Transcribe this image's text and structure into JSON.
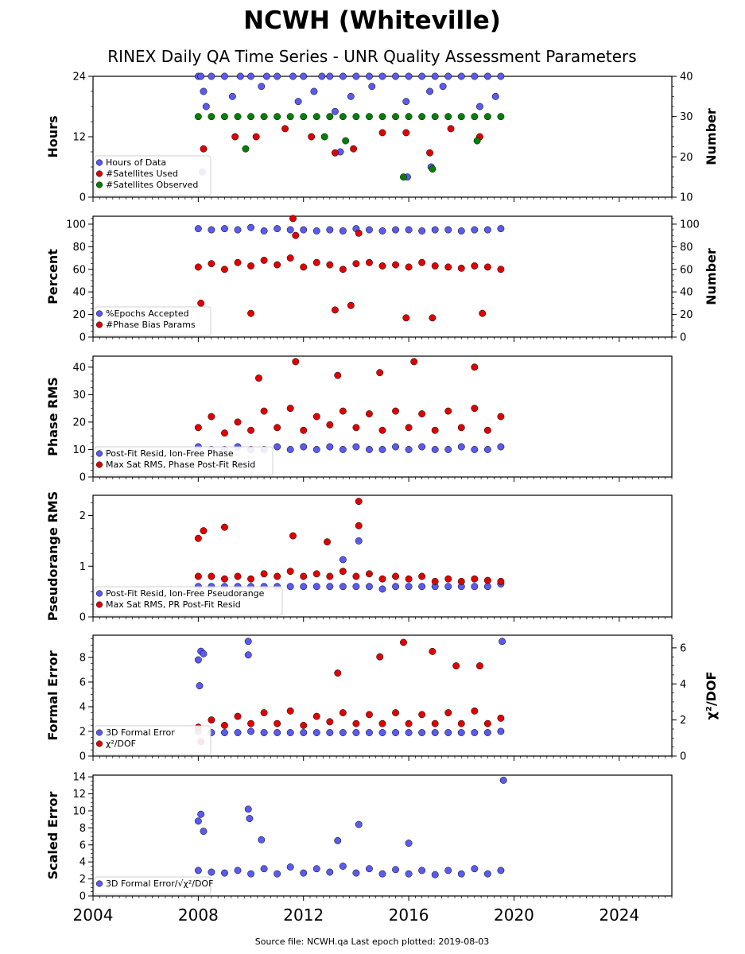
{
  "title": "NCWH (Whiteville)",
  "subtitle": "RINEX Daily QA Time Series - UNR Quality Assessment Parameters",
  "footer": "Source file: NCWH.qa Last epoch plotted: 2019-08-03",
  "colors": {
    "blue": "#5a5af0",
    "red": "#e00000",
    "green": "#008000",
    "edge": "#000000"
  },
  "chart_data": [
    {
      "type": "scatter",
      "id": "hours",
      "ylabel": "Hours",
      "ylabel_right": "Number",
      "x_range": [
        2004,
        2026
      ],
      "ylim": [
        0,
        24
      ],
      "yticks": [
        0,
        12,
        24
      ],
      "ylim_right": [
        10,
        40
      ],
      "yticks_right": [
        10,
        20,
        30,
        40
      ],
      "legend_position": "lower-left",
      "series": [
        {
          "name": "Hours of Data",
          "color": "blue",
          "axis": "left",
          "x": [
            2008.0,
            2008.1,
            2008.5,
            2009.0,
            2009.6,
            2010.0,
            2010.6,
            2011.0,
            2011.6,
            2012.0,
            2012.7,
            2013.0,
            2013.5,
            2014.0,
            2014.5,
            2015.0,
            2015.5,
            2016.0,
            2016.5,
            2017.0,
            2017.5,
            2018.0,
            2018.5,
            2019.0,
            2019.5,
            2008.2,
            2008.3,
            2009.3,
            2010.4,
            2011.8,
            2012.4,
            2013.2,
            2013.8,
            2014.6,
            2015.9,
            2016.8,
            2017.3,
            2018.7,
            2019.3,
            2008.15,
            2013.4,
            2015.95,
            2016.85
          ],
          "y": [
            24,
            24,
            24,
            24,
            24,
            24,
            24,
            24,
            24,
            24,
            24,
            24,
            24,
            24,
            24,
            24,
            24,
            24,
            24,
            24,
            24,
            24,
            24,
            24,
            24,
            21,
            18,
            20,
            22,
            19,
            21,
            17,
            20,
            22,
            19,
            21,
            22,
            18,
            20,
            5,
            9,
            4,
            6
          ]
        },
        {
          "name": "#Satellites Used",
          "color": "red",
          "axis": "right",
          "x": [
            2008.2,
            2009.4,
            2010.2,
            2011.3,
            2012.3,
            2013.2,
            2013.9,
            2015.0,
            2015.9,
            2016.8,
            2017.6,
            2018.7
          ],
          "y": [
            22,
            25,
            25,
            27,
            25,
            21,
            22,
            26,
            26,
            21,
            27,
            25
          ]
        },
        {
          "name": "#Satellites Observed",
          "color": "green",
          "axis": "right",
          "x": [
            2008.0,
            2008.5,
            2009.0,
            2009.5,
            2010.0,
            2010.5,
            2011.0,
            2011.5,
            2012.0,
            2012.5,
            2013.0,
            2013.5,
            2014.0,
            2014.5,
            2015.0,
            2015.5,
            2016.0,
            2016.5,
            2017.0,
            2017.5,
            2018.0,
            2018.5,
            2019.0,
            2019.5,
            2009.8,
            2012.8,
            2013.6,
            2015.8,
            2016.9,
            2018.6
          ],
          "y": [
            30,
            30,
            30,
            30,
            30,
            30,
            30,
            30,
            30,
            30,
            30,
            30,
            30,
            30,
            30,
            30,
            30,
            30,
            30,
            30,
            30,
            30,
            30,
            30,
            22,
            25,
            24,
            15,
            17,
            24
          ]
        }
      ]
    },
    {
      "type": "scatter",
      "id": "percent",
      "ylabel": "Percent",
      "ylabel_right": "Number",
      "x_range": [
        2004,
        2026
      ],
      "ylim": [
        0,
        107
      ],
      "yticks": [
        0,
        20,
        40,
        60,
        80,
        100
      ],
      "ylim_right": [
        0,
        107
      ],
      "yticks_right": [
        0,
        20,
        40,
        60,
        80,
        100
      ],
      "legend_position": "lower-left",
      "series": [
        {
          "name": "%Epochs Accepted",
          "color": "blue",
          "axis": "left",
          "x": [
            2008.0,
            2008.5,
            2009.0,
            2009.5,
            2010.0,
            2010.5,
            2011.0,
            2011.5,
            2012.0,
            2012.5,
            2013.0,
            2013.5,
            2014.0,
            2014.5,
            2015.0,
            2015.5,
            2016.0,
            2016.5,
            2017.0,
            2017.5,
            2018.0,
            2018.5,
            2019.0,
            2019.5
          ],
          "y": [
            96,
            95,
            96,
            95,
            97,
            94,
            96,
            95,
            95,
            94,
            95,
            94,
            96,
            95,
            94,
            95,
            95,
            94,
            95,
            95,
            94,
            95,
            95,
            96
          ]
        },
        {
          "name": "#Phase Bias Params",
          "color": "red",
          "axis": "right",
          "x": [
            2008.0,
            2008.5,
            2009.0,
            2009.5,
            2010.0,
            2010.5,
            2011.0,
            2011.5,
            2012.0,
            2012.5,
            2013.0,
            2013.5,
            2014.0,
            2014.5,
            2015.0,
            2015.5,
            2016.0,
            2016.5,
            2017.0,
            2017.5,
            2018.0,
            2018.5,
            2019.0,
            2019.5,
            2008.1,
            2010.0,
            2011.6,
            2013.2,
            2013.8,
            2015.9,
            2016.9,
            2018.8,
            2011.7,
            2014.1
          ],
          "y": [
            62,
            65,
            60,
            66,
            63,
            68,
            64,
            70,
            62,
            66,
            64,
            60,
            65,
            66,
            63,
            64,
            62,
            66,
            63,
            62,
            61,
            63,
            62,
            60,
            30,
            21,
            105,
            24,
            28,
            17,
            17,
            21,
            90,
            92
          ]
        }
      ]
    },
    {
      "type": "scatter",
      "id": "phase",
      "ylabel": "Phase RMS",
      "x_range": [
        2004,
        2026
      ],
      "ylim": [
        0,
        44
      ],
      "yticks": [
        0,
        10,
        20,
        30,
        40
      ],
      "legend_position": "lower-left",
      "series": [
        {
          "name": "Post-Fit Resid, Ion-Free Phase",
          "color": "blue",
          "x": [
            2008.0,
            2008.5,
            2009.0,
            2009.5,
            2010.0,
            2010.5,
            2011.0,
            2011.5,
            2012.0,
            2012.5,
            2013.0,
            2013.5,
            2014.0,
            2014.5,
            2015.0,
            2015.5,
            2016.0,
            2016.5,
            2017.0,
            2017.5,
            2018.0,
            2018.5,
            2019.0,
            2019.5
          ],
          "y": [
            11,
            10,
            10,
            11,
            10,
            10,
            11,
            10,
            11,
            10,
            11,
            10,
            11,
            10,
            10,
            11,
            10,
            11,
            10,
            10,
            11,
            10,
            10,
            11
          ]
        },
        {
          "name": "Max Sat RMS, Phase Post-Fit Resid",
          "color": "red",
          "x": [
            2008.0,
            2008.5,
            2009.0,
            2009.5,
            2010.0,
            2010.5,
            2011.0,
            2011.5,
            2012.0,
            2012.5,
            2013.0,
            2013.5,
            2014.0,
            2014.5,
            2015.0,
            2015.5,
            2016.0,
            2016.5,
            2017.0,
            2017.5,
            2018.0,
            2018.5,
            2019.0,
            2019.5,
            2011.7,
            2016.2,
            2018.5,
            2014.9,
            2013.3,
            2010.3
          ],
          "y": [
            18,
            22,
            16,
            20,
            17,
            24,
            18,
            25,
            17,
            22,
            19,
            24,
            18,
            23,
            17,
            24,
            18,
            23,
            17,
            24,
            18,
            25,
            17,
            22,
            42,
            42,
            40,
            38,
            37,
            36
          ]
        }
      ]
    },
    {
      "type": "scatter",
      "id": "pseudorange",
      "ylabel": "Pseudorange RMS",
      "x_range": [
        2004,
        2026
      ],
      "ylim": [
        0,
        2.4
      ],
      "yticks": [
        0,
        1,
        2
      ],
      "legend_position": "lower-left",
      "series": [
        {
          "name": "Post-Fit Resid, Ion-Free Pseudorange",
          "color": "blue",
          "x": [
            2008.0,
            2008.5,
            2009.0,
            2009.5,
            2010.0,
            2010.5,
            2011.0,
            2011.5,
            2012.0,
            2012.5,
            2013.0,
            2013.5,
            2014.0,
            2014.5,
            2015.0,
            2015.5,
            2016.0,
            2016.5,
            2017.0,
            2017.5,
            2018.0,
            2018.5,
            2019.0,
            2019.5,
            2013.5,
            2014.1
          ],
          "y": [
            0.6,
            0.6,
            0.6,
            0.6,
            0.6,
            0.6,
            0.6,
            0.6,
            0.6,
            0.6,
            0.6,
            0.6,
            0.6,
            0.6,
            0.55,
            0.6,
            0.6,
            0.6,
            0.6,
            0.6,
            0.6,
            0.6,
            0.6,
            0.65,
            1.13,
            1.5
          ]
        },
        {
          "name": "Max Sat RMS, PR Post-Fit Resid",
          "color": "red",
          "x": [
            2008.0,
            2008.5,
            2009.0,
            2009.5,
            2010.0,
            2010.5,
            2011.0,
            2011.5,
            2012.0,
            2012.5,
            2013.0,
            2013.5,
            2014.0,
            2014.5,
            2015.0,
            2015.5,
            2016.0,
            2016.5,
            2017.0,
            2017.5,
            2018.0,
            2018.5,
            2019.0,
            2019.5,
            2014.1,
            2014.1,
            2008.2,
            2008.0,
            2009.0,
            2011.6,
            2012.9
          ],
          "y": [
            0.8,
            0.8,
            0.75,
            0.8,
            0.75,
            0.85,
            0.8,
            0.9,
            0.8,
            0.85,
            0.8,
            0.9,
            0.8,
            0.85,
            0.75,
            0.8,
            0.75,
            0.8,
            0.7,
            0.75,
            0.7,
            0.75,
            0.72,
            0.7,
            2.28,
            1.8,
            1.7,
            1.55,
            1.77,
            1.6,
            1.48
          ]
        }
      ]
    },
    {
      "type": "scatter",
      "id": "formal",
      "ylabel": "Formal Error",
      "ylabel_right": "χ²/DOF",
      "x_range": [
        2004,
        2026
      ],
      "ylim": [
        0,
        9.8
      ],
      "yticks": [
        0,
        2,
        4,
        6,
        8
      ],
      "ylim_right": [
        0,
        6.7
      ],
      "yticks_right": [
        0,
        2,
        4,
        6
      ],
      "legend_position": "lower-left",
      "series": [
        {
          "name": "3D Formal Error",
          "color": "blue",
          "axis": "left",
          "x": [
            2008.0,
            2008.5,
            2009.0,
            2009.5,
            2010.0,
            2010.5,
            2011.0,
            2011.5,
            2012.0,
            2012.5,
            2013.0,
            2013.5,
            2014.0,
            2014.5,
            2015.0,
            2015.5,
            2016.0,
            2016.5,
            2017.0,
            2017.5,
            2018.0,
            2018.5,
            2019.0,
            2019.5,
            2008.0,
            2008.1,
            2008.2,
            2009.9,
            2009.9,
            2019.55,
            2008.05
          ],
          "y": [
            2.0,
            1.9,
            1.9,
            1.9,
            2.0,
            1.9,
            1.9,
            1.9,
            1.9,
            1.9,
            1.9,
            1.9,
            1.9,
            1.9,
            1.9,
            1.9,
            1.9,
            1.9,
            1.9,
            1.9,
            1.9,
            1.9,
            1.9,
            2.0,
            7.8,
            8.5,
            8.3,
            9.3,
            8.2,
            9.3,
            5.7
          ]
        },
        {
          "name": "χ²/DOF",
          "color": "red",
          "axis": "right",
          "x": [
            2008.0,
            2008.5,
            2009.0,
            2009.5,
            2010.0,
            2010.5,
            2011.0,
            2011.5,
            2012.0,
            2012.5,
            2013.0,
            2013.5,
            2014.0,
            2014.5,
            2015.0,
            2015.5,
            2016.0,
            2016.5,
            2017.0,
            2017.5,
            2018.0,
            2018.5,
            2019.0,
            2019.5,
            2015.8,
            2016.9,
            2017.8,
            2018.7,
            2014.9,
            2013.3,
            2008.1
          ],
          "y": [
            1.6,
            2.0,
            1.7,
            2.2,
            1.8,
            2.4,
            1.8,
            2.5,
            1.7,
            2.2,
            1.9,
            2.4,
            1.8,
            2.3,
            1.8,
            2.4,
            1.8,
            2.3,
            1.8,
            2.4,
            1.8,
            2.5,
            1.8,
            2.1,
            6.3,
            5.8,
            5.0,
            5.0,
            5.5,
            4.6,
            0.8
          ]
        }
      ]
    },
    {
      "type": "scatter",
      "id": "scaled",
      "ylabel": "Scaled Error",
      "x_range": [
        2004,
        2026
      ],
      "ylim": [
        0,
        14.2
      ],
      "yticks": [
        0,
        2,
        4,
        6,
        8,
        10,
        12,
        14
      ],
      "xticks": [
        2004,
        2008,
        2012,
        2016,
        2020,
        2024
      ],
      "legend_position": "lower-left",
      "series": [
        {
          "name": "3D Formal Error/√χ²/DOF",
          "color": "blue",
          "x": [
            2008.0,
            2008.5,
            2009.0,
            2009.5,
            2010.0,
            2010.5,
            2011.0,
            2011.5,
            2012.0,
            2012.5,
            2013.0,
            2013.5,
            2014.0,
            2014.5,
            2015.0,
            2015.5,
            2016.0,
            2016.5,
            2017.0,
            2017.5,
            2018.0,
            2018.5,
            2019.0,
            2019.5,
            2008.0,
            2008.1,
            2008.2,
            2009.9,
            2009.95,
            2014.1,
            2019.6,
            2010.4,
            2016.0,
            2013.3
          ],
          "y": [
            3.0,
            2.8,
            2.7,
            3.0,
            2.6,
            3.2,
            2.6,
            3.4,
            2.7,
            3.2,
            2.8,
            3.5,
            2.7,
            3.2,
            2.6,
            3.1,
            2.6,
            3.0,
            2.5,
            3.0,
            2.6,
            3.2,
            2.6,
            3.0,
            8.8,
            9.6,
            7.6,
            10.2,
            9.1,
            8.4,
            13.6,
            6.6,
            6.2,
            6.5
          ]
        }
      ]
    }
  ]
}
